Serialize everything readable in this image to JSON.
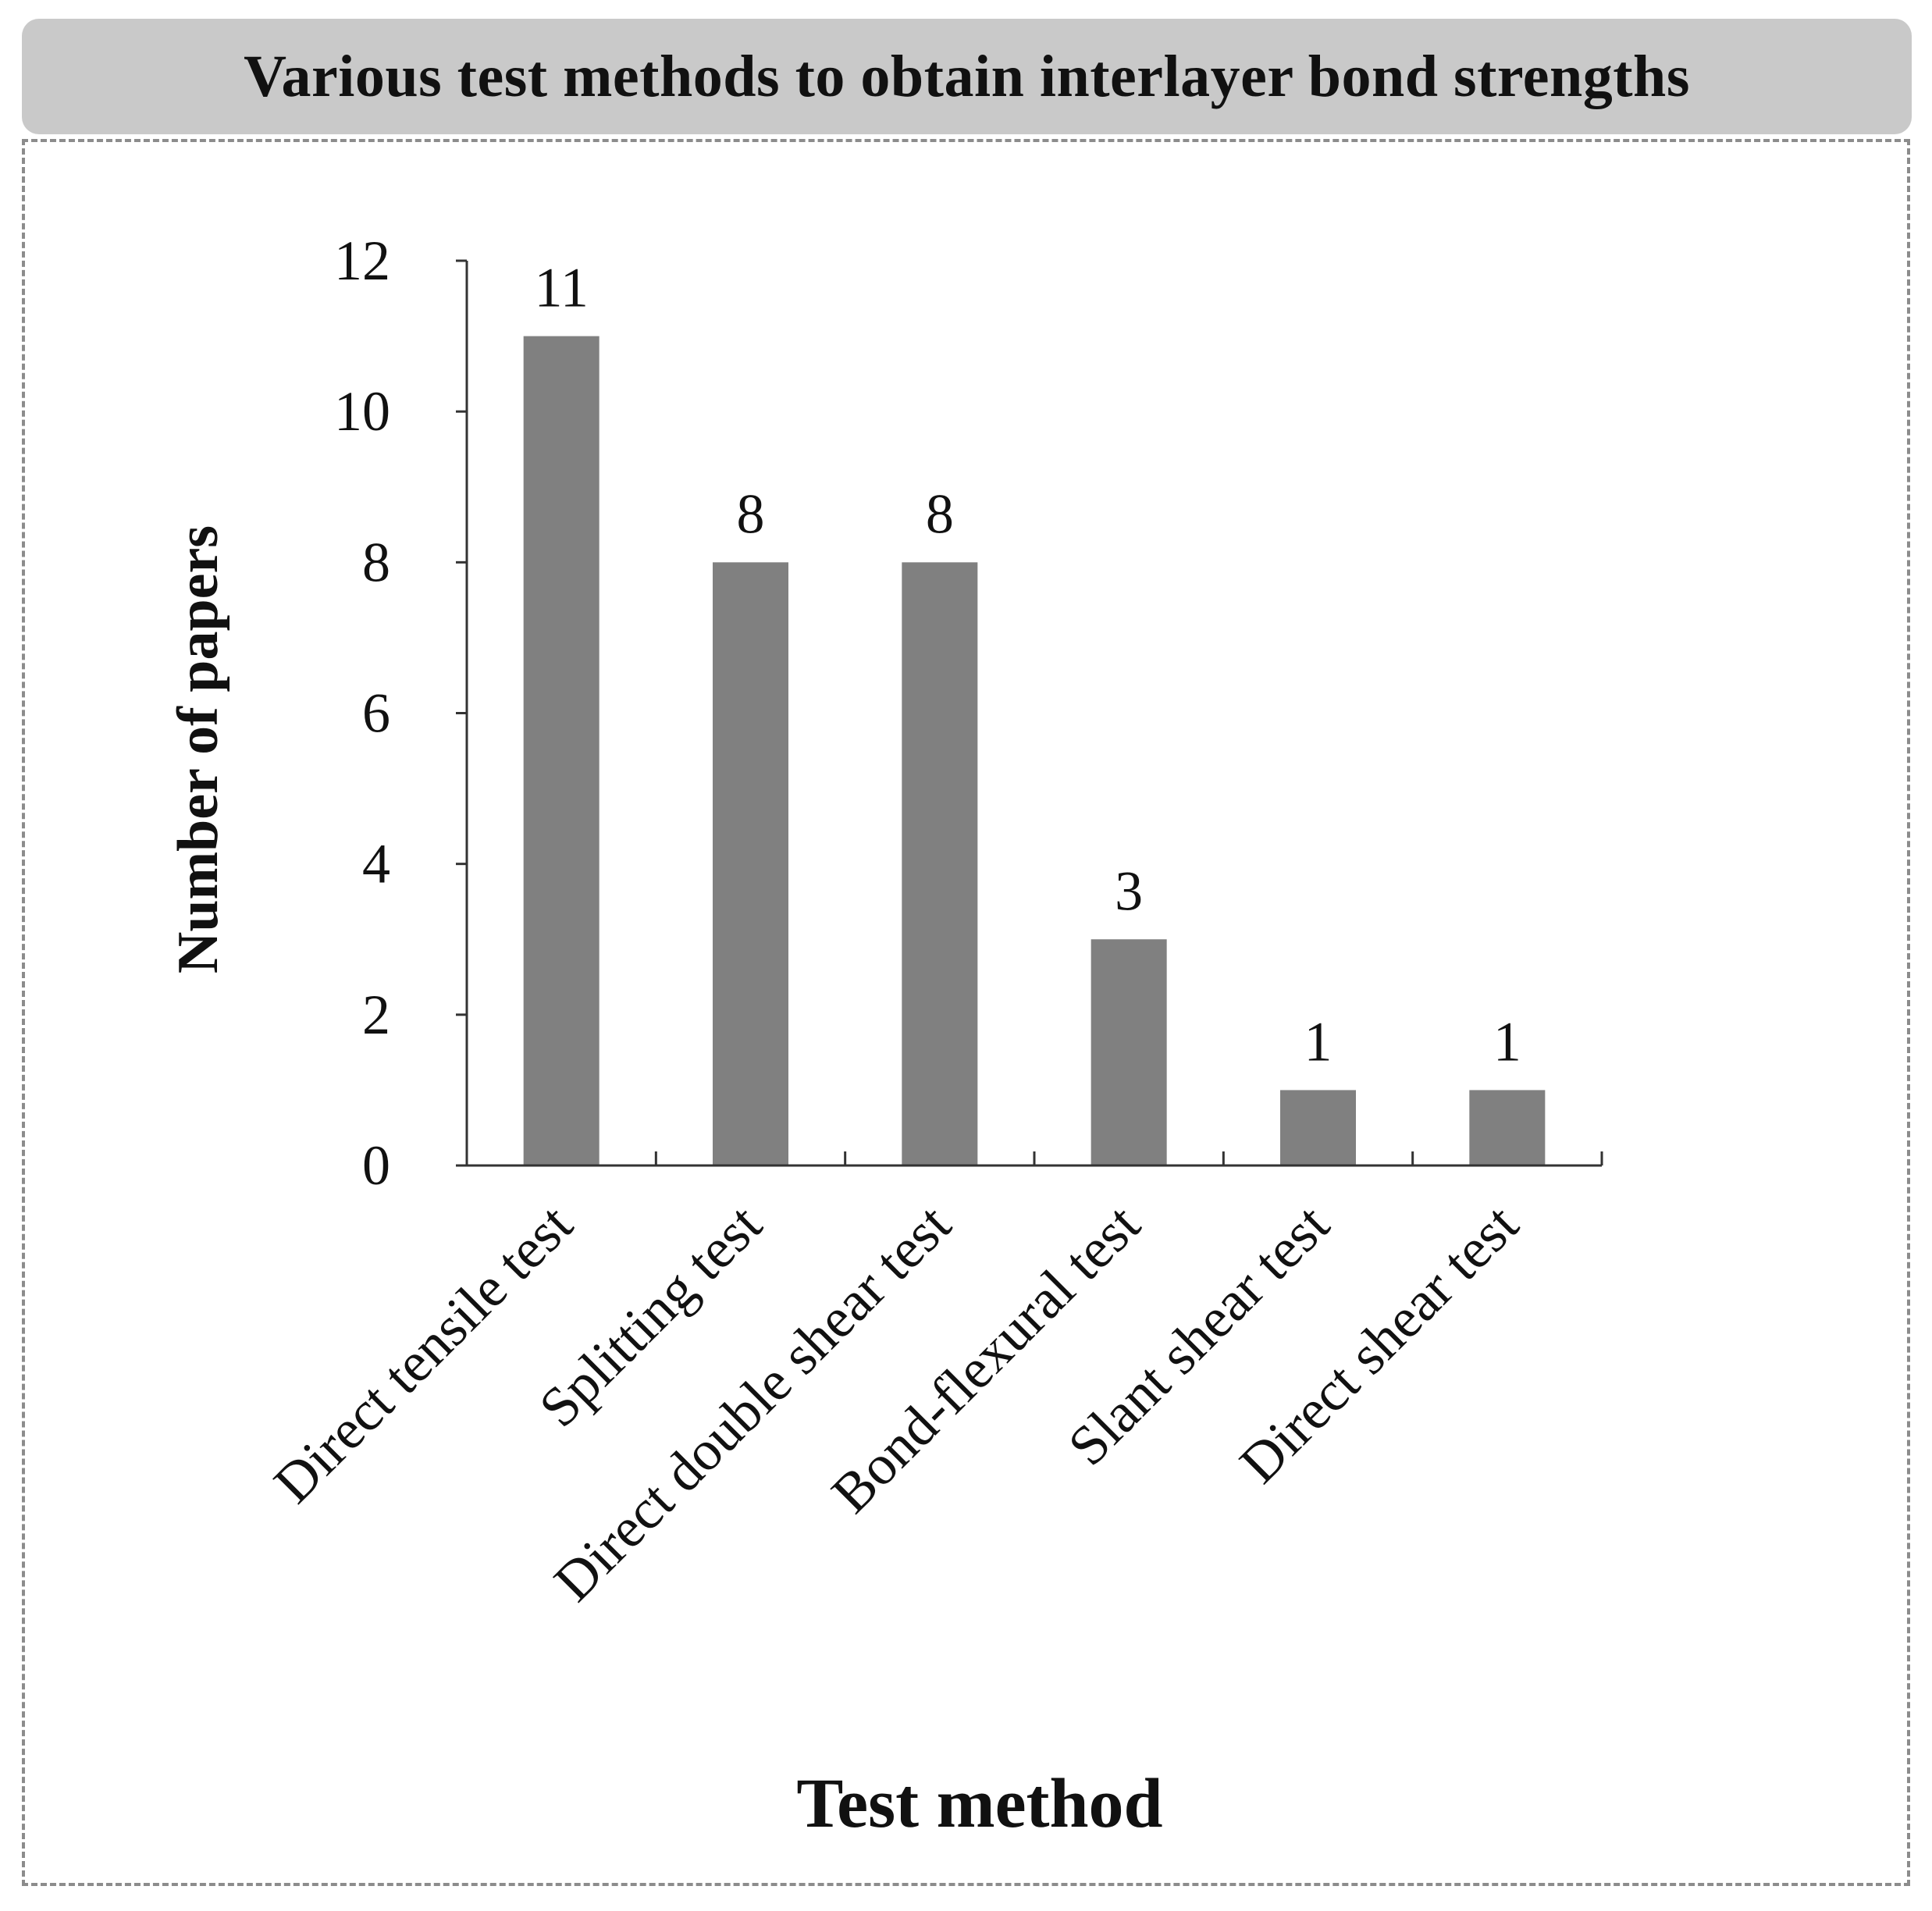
{
  "header": {
    "title": "Various test methods to obtain interlayer bond strengths"
  },
  "chart_data": {
    "type": "bar",
    "categories": [
      "Direct tensile test",
      "Splitting test",
      "Direct double shear test",
      "Bond-flexural test",
      "Slant shear test",
      "Direct shear test"
    ],
    "values": [
      11,
      8,
      8,
      3,
      1,
      1
    ],
    "xlabel": "Test method",
    "ylabel": "Number of papers",
    "ylim": [
      0,
      12
    ],
    "yticks": [
      0,
      2,
      4,
      6,
      8,
      10,
      12
    ],
    "bar_color": "#808080",
    "grid": false,
    "data_labels": true
  }
}
